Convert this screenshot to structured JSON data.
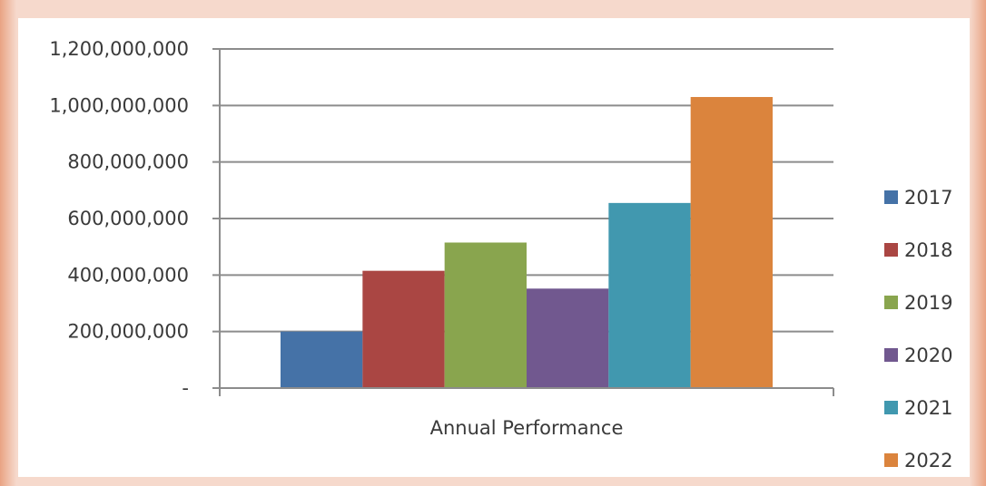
{
  "chart_data": {
    "type": "bar",
    "categories": [
      "Annual Performance"
    ],
    "xlabel": "Annual Performance",
    "ylabel": "",
    "title": "",
    "ylim": [
      0,
      1200000000
    ],
    "yticks": [
      0,
      200000000,
      400000000,
      600000000,
      800000000,
      1000000000,
      1200000000
    ],
    "ytick_labels": [
      "-",
      "200,000,000",
      "400,000,000",
      "600,000,000",
      "800,000,000",
      "1,000,000,000",
      "1,200,000,000"
    ],
    "grid": true,
    "legend_position": "right",
    "series": [
      {
        "name": "2017",
        "values": [
          200000000
        ],
        "color": "#4572a7"
      },
      {
        "name": "2018",
        "values": [
          415000000
        ],
        "color": "#aa4643"
      },
      {
        "name": "2019",
        "values": [
          515000000
        ],
        "color": "#89a54e"
      },
      {
        "name": "2020",
        "values": [
          352000000
        ],
        "color": "#71588f"
      },
      {
        "name": "2021",
        "values": [
          655000000
        ],
        "color": "#4198af"
      },
      {
        "name": "2022",
        "values": [
          1030000000
        ],
        "color": "#db843d"
      }
    ]
  }
}
